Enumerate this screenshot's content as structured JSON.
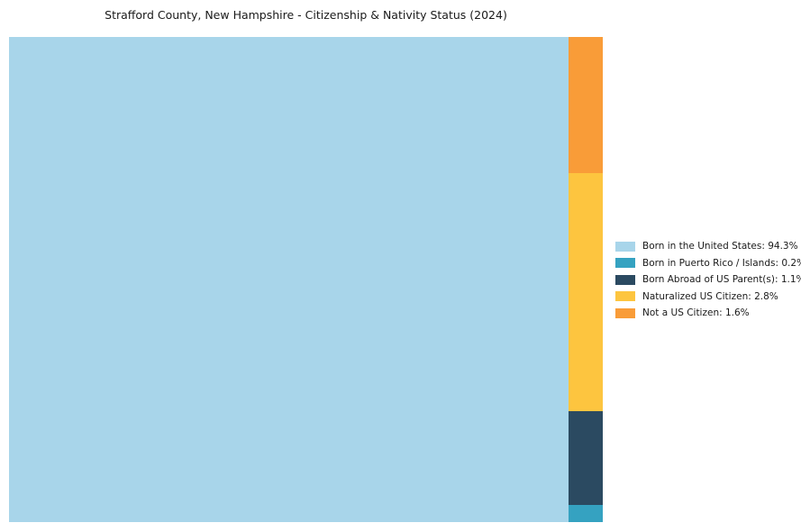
{
  "chart_data": {
    "type": "treemap",
    "title": "Strafford County, New Hampshire - Citizenship & Nativity Status (2024)",
    "legend_position": "right",
    "items": [
      {
        "label": "Born in the United States",
        "value": 94.3,
        "color": "#a8d5ea"
      },
      {
        "label": "Born in Puerto Rico / Islands",
        "value": 0.2,
        "color": "#35a2c1"
      },
      {
        "label": "Born Abroad of US Parent(s)",
        "value": 1.1,
        "color": "#2b4a61"
      },
      {
        "label": "Naturalized US Citizen",
        "value": 2.8,
        "color": "#fdc53f"
      },
      {
        "label": "Not a US Citizen",
        "value": 1.6,
        "color": "#f99c38"
      }
    ],
    "layout": {
      "main_item_index": 0,
      "column_top_to_bottom": [
        4,
        3,
        2,
        1
      ]
    }
  }
}
